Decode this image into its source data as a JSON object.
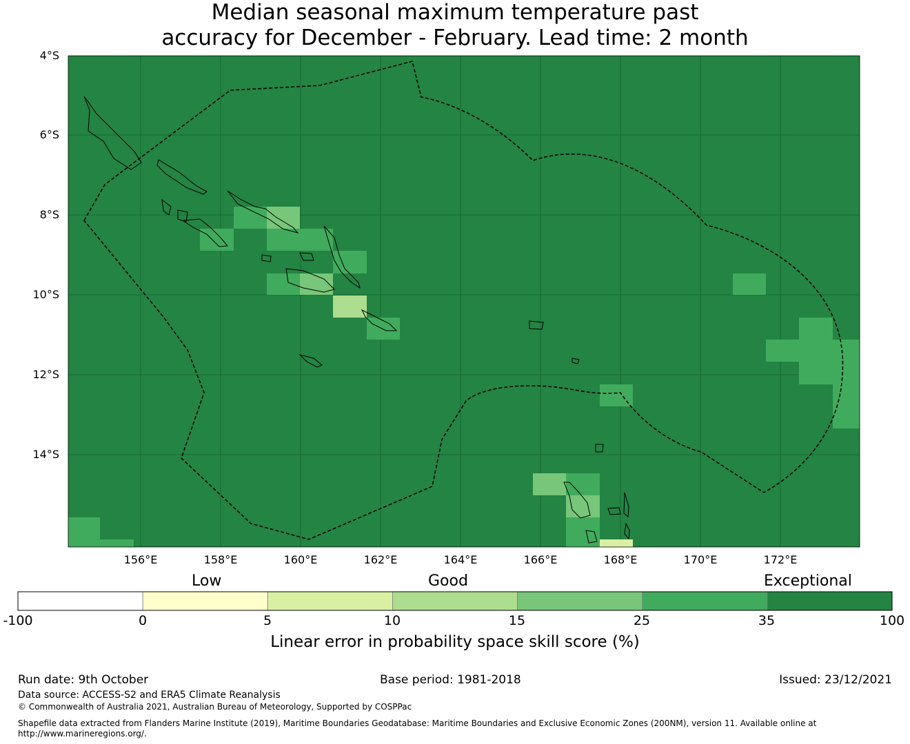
{
  "title_line1": "Median seasonal maximum temperature past",
  "title_line2": "accuracy for December - February. Lead time: 2 month",
  "lat_labels": [
    "4°S",
    "6°S",
    "8°S",
    "10°S",
    "12°S",
    "14°S"
  ],
  "lon_labels": [
    "156°E",
    "158°E",
    "160°E",
    "162°E",
    "164°E",
    "166°E",
    "168°E",
    "170°E",
    "172°E"
  ],
  "colorbar": {
    "category_labels": [
      "Low",
      "Good",
      "Exceptional"
    ],
    "ticks": [
      "-100",
      "0",
      "5",
      "10",
      "15",
      "25",
      "35",
      "100"
    ],
    "colors": [
      "#ffffff",
      "#ffffcc",
      "#d9f0a3",
      "#addd8e",
      "#78c679",
      "#41ab5d",
      "#238443"
    ],
    "label": "Linear error in probability space skill score (%)"
  },
  "colors": {
    "map_base": "#238443",
    "outline": "#000000"
  },
  "footer": {
    "run_date": "Run date: 9th October",
    "base_period": "Base period: 1981-2018",
    "issued": "Issued: 23/12/2021",
    "data_source": "Data source: ACCESS-S2 and ERA5 Climate Reanalysis",
    "copyright": "© Commonwealth of Australia 2021, Australian Bureau of Meteorology, Supported by COSPPac",
    "shapefile_line1": "Shapefile data extracted from Flanders Marine Institute (2019), Maritime Boundaries Geodatabase: Maritime Boundaries and Exclusive Economic Zones (200NM), version 11. Available online at",
    "shapefile_line2": "http://www.marineregions.org/."
  }
}
